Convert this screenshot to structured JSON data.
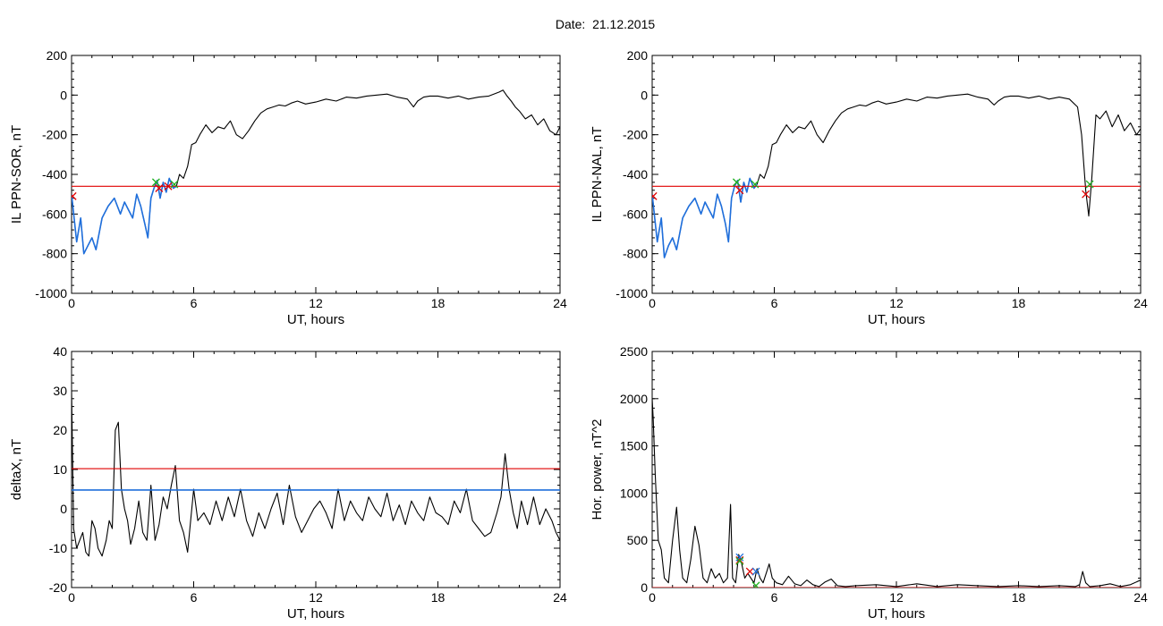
{
  "page": {
    "title": "Date:  21.12.2015"
  },
  "colors": {
    "black": "#000000",
    "red": "#e00000",
    "blue": "#1f6fdc",
    "green": "#20b020",
    "axis": "#000000"
  },
  "chart_data": [
    {
      "type": "line",
      "title": "",
      "xlabel": "UT, hours",
      "ylabel": "IL PPN-SOR, nT",
      "xlim": [
        0,
        24
      ],
      "ylim": [
        -1000,
        200
      ],
      "x_ticks": [
        0,
        6,
        12,
        18,
        24
      ],
      "y_ticks": [
        -1000,
        -800,
        -600,
        -400,
        -200,
        0,
        200
      ],
      "grid": false,
      "series": [
        {
          "color": "#000000",
          "x": [
            0,
            0.25,
            0.45,
            0.6,
            0.8,
            1.0,
            1.2,
            1.5,
            1.8,
            2.1,
            2.4,
            2.6,
            2.8,
            3.0,
            3.2,
            3.4,
            3.6,
            3.75,
            3.9,
            4.05,
            4.2,
            4.35,
            4.5,
            4.65,
            4.8,
            5.0,
            5.15,
            5.3,
            5.5,
            5.7,
            5.9,
            6.1,
            6.3,
            6.6,
            6.9,
            7.2,
            7.5,
            7.8,
            8.1,
            8.4,
            8.7,
            9.0,
            9.3,
            9.6,
            9.9,
            10.2,
            10.5,
            10.8,
            11.1,
            11.5,
            12.0,
            12.5,
            13.0,
            13.5,
            14.0,
            14.5,
            15.0,
            15.5,
            16.0,
            16.5,
            16.8,
            17.0,
            17.3,
            17.6,
            18.0,
            18.5,
            19.0,
            19.5,
            20.0,
            20.5,
            21.0,
            21.2,
            21.4,
            21.6,
            21.8,
            22.0,
            22.3,
            22.6,
            22.9,
            23.2,
            23.5,
            23.8,
            24.0
          ],
          "values": [
            -500,
            -740,
            -620,
            -800,
            -760,
            -720,
            -780,
            -620,
            -560,
            -520,
            -600,
            -540,
            -580,
            -620,
            -500,
            -560,
            -650,
            -720,
            -520,
            -470,
            -430,
            -520,
            -440,
            -490,
            -420,
            -470,
            -460,
            -400,
            -420,
            -360,
            -250,
            -240,
            -200,
            -150,
            -190,
            -160,
            -170,
            -130,
            -200,
            -220,
            -180,
            -130,
            -90,
            -70,
            -60,
            -50,
            -55,
            -40,
            -30,
            -45,
            -35,
            -20,
            -30,
            -10,
            -15,
            -5,
            0,
            5,
            -10,
            -20,
            -60,
            -30,
            -10,
            -5,
            -5,
            -15,
            -5,
            -20,
            -10,
            -5,
            15,
            25,
            -5,
            -30,
            -60,
            -80,
            -120,
            -100,
            -150,
            -120,
            -180,
            -200,
            -160
          ]
        },
        {
          "color": "#1f6fdc",
          "x": [
            0,
            0.25,
            0.45,
            0.6,
            0.8,
            1.0,
            1.2,
            1.5,
            1.8,
            2.1,
            2.4,
            2.6,
            2.8,
            3.0,
            3.2,
            3.4,
            3.6,
            3.75,
            3.9,
            4.05,
            4.2,
            4.35,
            4.5,
            4.65,
            4.8,
            5.0,
            5.15
          ],
          "values": [
            -500,
            -740,
            -620,
            -800,
            -760,
            -720,
            -780,
            -620,
            -560,
            -520,
            -600,
            -540,
            -580,
            -620,
            -500,
            -560,
            -650,
            -720,
            -520,
            -470,
            -430,
            -520,
            -440,
            -490,
            -420,
            -470,
            -460
          ]
        },
        {
          "color": "#e00000",
          "x": [
            0,
            24
          ],
          "values": [
            -460,
            -460
          ]
        }
      ],
      "markers": [
        {
          "color": "#e00000",
          "x": [
            0.05,
            4.3,
            4.75
          ],
          "values": [
            -510,
            -470,
            -460
          ]
        },
        {
          "color": "#20b020",
          "x": [
            4.15,
            5.05
          ],
          "values": [
            -440,
            -450
          ]
        }
      ]
    },
    {
      "type": "line",
      "title": "",
      "xlabel": "UT, hours",
      "ylabel": "IL PPN-NAL, nT",
      "xlim": [
        0,
        24
      ],
      "ylim": [
        -1000,
        200
      ],
      "x_ticks": [
        0,
        6,
        12,
        18,
        24
      ],
      "y_ticks": [
        -1000,
        -800,
        -600,
        -400,
        -200,
        0,
        200
      ],
      "grid": false,
      "series": [
        {
          "color": "#000000",
          "x": [
            0,
            0.25,
            0.45,
            0.6,
            0.8,
            1.0,
            1.2,
            1.5,
            1.8,
            2.1,
            2.4,
            2.6,
            2.8,
            3.0,
            3.2,
            3.4,
            3.6,
            3.75,
            3.9,
            4.05,
            4.2,
            4.35,
            4.5,
            4.65,
            4.8,
            5.0,
            5.15,
            5.3,
            5.5,
            5.7,
            5.9,
            6.1,
            6.3,
            6.6,
            6.9,
            7.2,
            7.5,
            7.8,
            8.1,
            8.4,
            8.7,
            9.0,
            9.3,
            9.6,
            9.9,
            10.2,
            10.5,
            10.8,
            11.1,
            11.5,
            12.0,
            12.5,
            13.0,
            13.5,
            14.0,
            14.5,
            15.0,
            15.5,
            16.0,
            16.5,
            16.8,
            17.0,
            17.3,
            17.6,
            18.0,
            18.5,
            19.0,
            19.5,
            20.0,
            20.5,
            20.9,
            21.1,
            21.3,
            21.45,
            21.6,
            21.8,
            22.0,
            22.3,
            22.6,
            22.9,
            23.2,
            23.5,
            23.8,
            24.0
          ],
          "values": [
            -500,
            -740,
            -620,
            -820,
            -760,
            -720,
            -780,
            -620,
            -560,
            -520,
            -600,
            -540,
            -580,
            -620,
            -500,
            -560,
            -650,
            -740,
            -520,
            -460,
            -430,
            -540,
            -440,
            -490,
            -420,
            -470,
            -450,
            -400,
            -420,
            -360,
            -250,
            -240,
            -200,
            -150,
            -190,
            -160,
            -170,
            -130,
            -200,
            -240,
            -180,
            -130,
            -90,
            -70,
            -60,
            -50,
            -55,
            -40,
            -30,
            -45,
            -35,
            -20,
            -30,
            -10,
            -15,
            -5,
            0,
            5,
            -10,
            -20,
            -50,
            -30,
            -10,
            -5,
            -5,
            -15,
            -5,
            -20,
            -10,
            -20,
            -60,
            -200,
            -480,
            -610,
            -420,
            -100,
            -120,
            -80,
            -160,
            -100,
            -180,
            -140,
            -200,
            -170
          ]
        },
        {
          "color": "#1f6fdc",
          "x": [
            0,
            0.25,
            0.45,
            0.6,
            0.8,
            1.0,
            1.2,
            1.5,
            1.8,
            2.1,
            2.4,
            2.6,
            2.8,
            3.0,
            3.2,
            3.4,
            3.6,
            3.75,
            3.9,
            4.05,
            4.2,
            4.35,
            4.5,
            4.65,
            4.8,
            5.0,
            5.15
          ],
          "values": [
            -500,
            -740,
            -620,
            -820,
            -760,
            -720,
            -780,
            -620,
            -560,
            -520,
            -600,
            -540,
            -580,
            -620,
            -500,
            -560,
            -650,
            -740,
            -520,
            -460,
            -430,
            -540,
            -440,
            -490,
            -420,
            -470,
            -450
          ]
        },
        {
          "color": "#e00000",
          "x": [
            0,
            24
          ],
          "values": [
            -460,
            -460
          ]
        }
      ],
      "markers": [
        {
          "color": "#e00000",
          "x": [
            0.05,
            4.3,
            21.3
          ],
          "values": [
            -510,
            -480,
            -500
          ]
        },
        {
          "color": "#20b020",
          "x": [
            4.15,
            5.05,
            21.5
          ],
          "values": [
            -440,
            -450,
            -450
          ]
        }
      ]
    },
    {
      "type": "line",
      "title": "",
      "xlabel": "UT, hours",
      "ylabel": "deltaX, nT",
      "xlim": [
        0,
        24
      ],
      "ylim": [
        -20,
        40
      ],
      "x_ticks": [
        0,
        6,
        12,
        18,
        24
      ],
      "y_ticks": [
        -20,
        -10,
        0,
        10,
        20,
        30,
        40
      ],
      "grid": false,
      "series": [
        {
          "color": "#000000",
          "x": [
            0,
            0.1,
            0.25,
            0.4,
            0.55,
            0.7,
            0.85,
            1.0,
            1.15,
            1.3,
            1.5,
            1.7,
            1.85,
            2.0,
            2.15,
            2.3,
            2.45,
            2.6,
            2.75,
            2.9,
            3.1,
            3.3,
            3.5,
            3.7,
            3.9,
            4.1,
            4.3,
            4.5,
            4.7,
            4.9,
            5.1,
            5.3,
            5.5,
            5.7,
            5.85,
            6.0,
            6.2,
            6.5,
            6.8,
            7.1,
            7.4,
            7.7,
            8.0,
            8.3,
            8.6,
            8.9,
            9.2,
            9.5,
            9.8,
            10.1,
            10.4,
            10.7,
            11.0,
            11.3,
            11.6,
            11.9,
            12.2,
            12.5,
            12.8,
            13.1,
            13.4,
            13.7,
            14.0,
            14.3,
            14.6,
            14.9,
            15.2,
            15.5,
            15.8,
            16.1,
            16.4,
            16.7,
            17.0,
            17.3,
            17.6,
            17.9,
            18.2,
            18.5,
            18.8,
            19.1,
            19.4,
            19.7,
            20.0,
            20.3,
            20.6,
            20.9,
            21.1,
            21.3,
            21.5,
            21.7,
            21.9,
            22.1,
            22.4,
            22.7,
            23.0,
            23.3,
            23.6,
            23.8,
            24.0
          ],
          "values": [
            30,
            -5,
            -10,
            -8,
            -6,
            -11,
            -12,
            -3,
            -5,
            -10,
            -12,
            -8,
            -3,
            -5,
            20,
            22,
            5,
            0,
            -3,
            -9,
            -5,
            2,
            -6,
            -8,
            6,
            -8,
            -4,
            3,
            0,
            6,
            11,
            -3,
            -6,
            -11,
            -3,
            5,
            -3,
            -1,
            -4,
            2,
            -3,
            3,
            -2,
            5,
            -3,
            -7,
            -1,
            -5,
            0,
            4,
            -4,
            6,
            -2,
            -6,
            -3,
            0,
            2,
            -1,
            -5,
            5,
            -3,
            2,
            -1,
            -3,
            3,
            0,
            -2,
            4,
            -3,
            1,
            -4,
            2,
            -1,
            -3,
            3,
            -1,
            -2,
            -4,
            2,
            -1,
            5,
            -3,
            -5,
            -7,
            -6,
            -1,
            3,
            14,
            5,
            -1,
            -5,
            2,
            -4,
            3,
            -4,
            0,
            -3,
            -6,
            -8
          ]
        },
        {
          "color": "#e00000",
          "x": [
            0,
            24
          ],
          "values": [
            10.2,
            10.2
          ]
        },
        {
          "color": "#1f6fdc",
          "x": [
            0,
            24
          ],
          "values": [
            4.8,
            4.8
          ]
        }
      ],
      "markers": []
    },
    {
      "type": "line",
      "title": "",
      "xlabel": "UT, hours",
      "ylabel": "Hor. power, nT^2",
      "xlim": [
        0,
        24
      ],
      "ylim": [
        0,
        2500
      ],
      "x_ticks": [
        0,
        6,
        12,
        18,
        24
      ],
      "y_ticks": [
        0,
        500,
        1000,
        1500,
        2000,
        2500
      ],
      "grid": false,
      "series": [
        {
          "color": "#000000",
          "x": [
            0,
            0.05,
            0.15,
            0.3,
            0.45,
            0.6,
            0.8,
            1.0,
            1.2,
            1.35,
            1.5,
            1.7,
            1.9,
            2.1,
            2.3,
            2.5,
            2.7,
            2.9,
            3.1,
            3.3,
            3.5,
            3.7,
            3.85,
            3.95,
            4.1,
            4.25,
            4.4,
            4.55,
            4.7,
            4.85,
            5.0,
            5.15,
            5.3,
            5.45,
            5.6,
            5.75,
            5.9,
            6.1,
            6.4,
            6.7,
            7.0,
            7.3,
            7.6,
            7.9,
            8.2,
            8.5,
            8.8,
            9.1,
            9.5,
            10.0,
            11.0,
            12.0,
            13.0,
            14.0,
            15.0,
            16.0,
            17.0,
            18.0,
            19.0,
            20.0,
            20.8,
            21.0,
            21.15,
            21.3,
            21.5,
            22.0,
            22.5,
            23.0,
            23.5,
            24.0
          ],
          "values": [
            2000,
            1800,
            1200,
            500,
            400,
            100,
            50,
            500,
            850,
            400,
            100,
            50,
            300,
            650,
            450,
            100,
            50,
            200,
            100,
            150,
            50,
            100,
            880,
            100,
            50,
            350,
            250,
            100,
            150,
            100,
            50,
            200,
            100,
            50,
            150,
            250,
            100,
            50,
            30,
            120,
            40,
            20,
            80,
            30,
            10,
            60,
            90,
            20,
            10,
            20,
            30,
            10,
            40,
            10,
            30,
            20,
            10,
            20,
            10,
            20,
            10,
            30,
            170,
            50,
            10,
            20,
            40,
            10,
            30,
            80
          ]
        },
        {
          "color": "#e00000",
          "x": [
            0,
            24
          ],
          "values": [
            0,
            0
          ]
        }
      ],
      "markers": [
        {
          "color": "#e00000",
          "x": [
            4.3,
            4.8
          ],
          "values": [
            290,
            170
          ]
        },
        {
          "color": "#1f6fdc",
          "x": [
            4.3,
            5.1
          ],
          "values": [
            320,
            170
          ]
        },
        {
          "color": "#20b020",
          "x": [
            4.3,
            5.1
          ],
          "values": [
            280,
            20
          ]
        }
      ]
    }
  ]
}
